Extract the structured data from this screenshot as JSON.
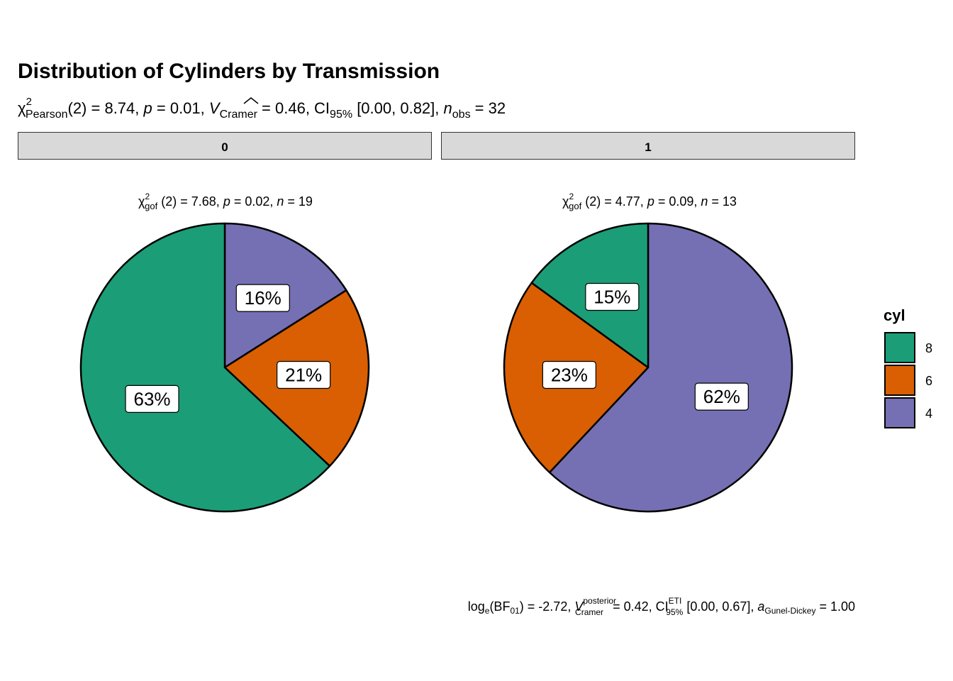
{
  "chart_data": {
    "type": "pie",
    "title": "Distribution of Cylinders by Transmission",
    "subtitle": {
      "stat_symbol": "χ",
      "stat_sup": "2",
      "stat_sub": "Pearson",
      "df": "(2) = 8.74, ",
      "p_symbol": "p",
      "p_value": " = 0.01, ",
      "effect_symbol": "V",
      "effect_sub": "Cramer",
      "effect_value": " = 0.46, CI",
      "ci_sub": "95%",
      "ci_value": " [0.00, 0.82], ",
      "n_symbol": "n",
      "n_sub": "obs",
      "n_value": " = 32"
    },
    "caption": {
      "log_text": "log",
      "log_sub": "e",
      "bf_text": "(BF",
      "bf_sub": "01",
      "bf_value": ") = -2.72, ",
      "v_symbol": "V",
      "v_sup": "posterior",
      "v_sub": "Cramer",
      "v_value": " = 0.42, CI",
      "ci_sup": "ETI",
      "ci_sub": "95%",
      "ci_value": " [0.00, 0.67], ",
      "a_symbol": "a",
      "a_sub": "Gunel-Dickey",
      "a_value": " = 1.00"
    },
    "legend": {
      "title": "cyl",
      "entries": [
        {
          "label": "8",
          "color": "#1B9E77"
        },
        {
          "label": "6",
          "color": "#D95F02"
        },
        {
          "label": "4",
          "color": "#7570B3"
        }
      ]
    },
    "facets": [
      {
        "strip": "0",
        "stat": {
          "sym": "χ",
          "sup": "2",
          "sub": "gof",
          "df": " (2) = 7.68, ",
          "p_sym": "p",
          "p_val": " = 0.02, ",
          "n_sym": "n",
          "n_val": " = 19"
        },
        "slices": [
          {
            "category": "4",
            "value": 16,
            "label": "16%",
            "color": "#7570B3"
          },
          {
            "category": "6",
            "value": 21,
            "label": "21%",
            "color": "#D95F02"
          },
          {
            "category": "8",
            "value": 63,
            "label": "63%",
            "color": "#1B9E77"
          }
        ]
      },
      {
        "strip": "1",
        "stat": {
          "sym": "χ",
          "sup": "2",
          "sub": "gof",
          "df": " (2) = 4.77, ",
          "p_sym": "p",
          "p_val": " = 0.09, ",
          "n_sym": "n",
          "n_val": " = 13"
        },
        "slices": [
          {
            "category": "4",
            "value": 62,
            "label": "62%",
            "color": "#7570B3"
          },
          {
            "category": "6",
            "value": 23,
            "label": "23%",
            "color": "#D95F02"
          },
          {
            "category": "8",
            "value": 15,
            "label": "15%",
            "color": "#1B9E77"
          }
        ]
      }
    ]
  }
}
